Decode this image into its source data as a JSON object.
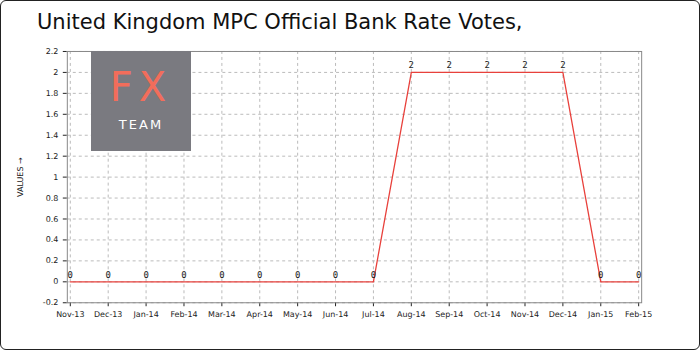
{
  "chart_data": {
    "type": "line",
    "title": "United Kingdom MPC Official Bank Rate Votes,",
    "y_label": "VALUES",
    "categories": [
      "Nov-13",
      "Dec-13",
      "Jan-14",
      "Feb-14",
      "Mar-14",
      "Apr-14",
      "May-14",
      "Jun-14",
      "Jul-14",
      "Aug-14",
      "Sep-14",
      "Oct-14",
      "Nov-14",
      "Dec-14",
      "Jan-15",
      "Feb-15"
    ],
    "values": [
      0,
      0,
      0,
      0,
      0,
      0,
      0,
      0,
      0,
      2,
      2,
      2,
      2,
      2,
      0,
      0
    ],
    "color": "#e8413c",
    "ylim": [
      -0.2,
      2.2
    ],
    "yticks": [
      -0.2,
      0,
      0.2,
      0.4,
      0.6,
      0.8,
      1,
      1.2,
      1.4,
      1.6,
      1.8,
      2,
      2.2
    ],
    "grid": true,
    "data_labels": true,
    "annotations": [
      {
        "text": "FX"
      },
      {
        "text": "TEAM"
      }
    ]
  }
}
